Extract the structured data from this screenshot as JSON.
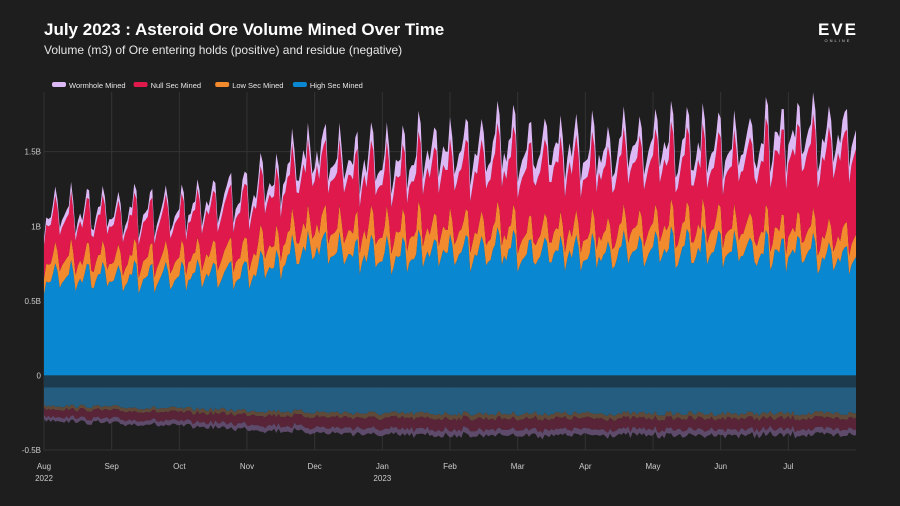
{
  "title": "July 2023 : Asteroid Ore Volume Mined Over Time",
  "subtitle": "Volume (m3) of Ore entering holds (positive) and residue (negative)",
  "logo": {
    "mark": "EVE",
    "sub": "ONLINE"
  },
  "chart_data": {
    "type": "area",
    "stacked": true,
    "title": "July 2023 : Asteroid Ore Volume Mined Over Time",
    "subtitle": "Volume (m3) of Ore entering holds (positive) and residue (negative)",
    "xlabel": "",
    "ylabel": "",
    "ylim": [
      -0.5,
      1.9
    ],
    "y_unit": "billion m3",
    "yticks": [
      {
        "value": -0.5,
        "label": "-0.5B"
      },
      {
        "value": 0,
        "label": "0"
      },
      {
        "value": 0.5,
        "label": "0.5B"
      },
      {
        "value": 1.0,
        "label": "1B"
      },
      {
        "value": 1.5,
        "label": "1.5B"
      }
    ],
    "x_range_months": [
      0,
      12
    ],
    "xticks": [
      {
        "month": 0,
        "label": "Aug",
        "sub": "2022"
      },
      {
        "month": 1,
        "label": "Sep",
        "sub": ""
      },
      {
        "month": 2,
        "label": "Oct",
        "sub": ""
      },
      {
        "month": 3,
        "label": "Nov",
        "sub": ""
      },
      {
        "month": 4,
        "label": "Dec",
        "sub": ""
      },
      {
        "month": 5,
        "label": "Jan",
        "sub": "2023"
      },
      {
        "month": 6,
        "label": "Feb",
        "sub": ""
      },
      {
        "month": 7,
        "label": "Mar",
        "sub": ""
      },
      {
        "month": 8,
        "label": "Apr",
        "sub": ""
      },
      {
        "month": 9,
        "label": "May",
        "sub": ""
      },
      {
        "month": 10,
        "label": "Jun",
        "sub": ""
      },
      {
        "month": 11,
        "label": "Jul",
        "sub": ""
      }
    ],
    "grid": true,
    "legend_position": "top-left",
    "series": [
      {
        "name": "Wormhole Mined",
        "color": "#dcb8f5",
        "values": [
          0.05,
          0.05,
          0.05,
          0.07,
          0.09,
          0.1,
          0.12,
          0.12,
          0.12,
          0.11,
          0.11,
          0.12,
          0.12
        ]
      },
      {
        "name": "Null Sec Mined",
        "color": "#e0194d",
        "values": [
          0.26,
          0.25,
          0.26,
          0.31,
          0.37,
          0.35,
          0.39,
          0.43,
          0.42,
          0.42,
          0.4,
          0.5,
          0.54
        ]
      },
      {
        "name": "Low Sec Mined",
        "color": "#f28a2e",
        "values": [
          0.12,
          0.12,
          0.12,
          0.14,
          0.15,
          0.16,
          0.15,
          0.14,
          0.14,
          0.15,
          0.15,
          0.14,
          0.14
        ]
      },
      {
        "name": "High Sec Mined",
        "color": "#0a87d1",
        "values": [
          0.63,
          0.63,
          0.64,
          0.66,
          0.82,
          0.76,
          0.8,
          0.8,
          0.79,
          0.8,
          0.81,
          0.8,
          0.75
        ]
      }
    ],
    "residue": {
      "label": "residue (negative)",
      "min_total": -0.3,
      "max_total": -0.4
    }
  }
}
